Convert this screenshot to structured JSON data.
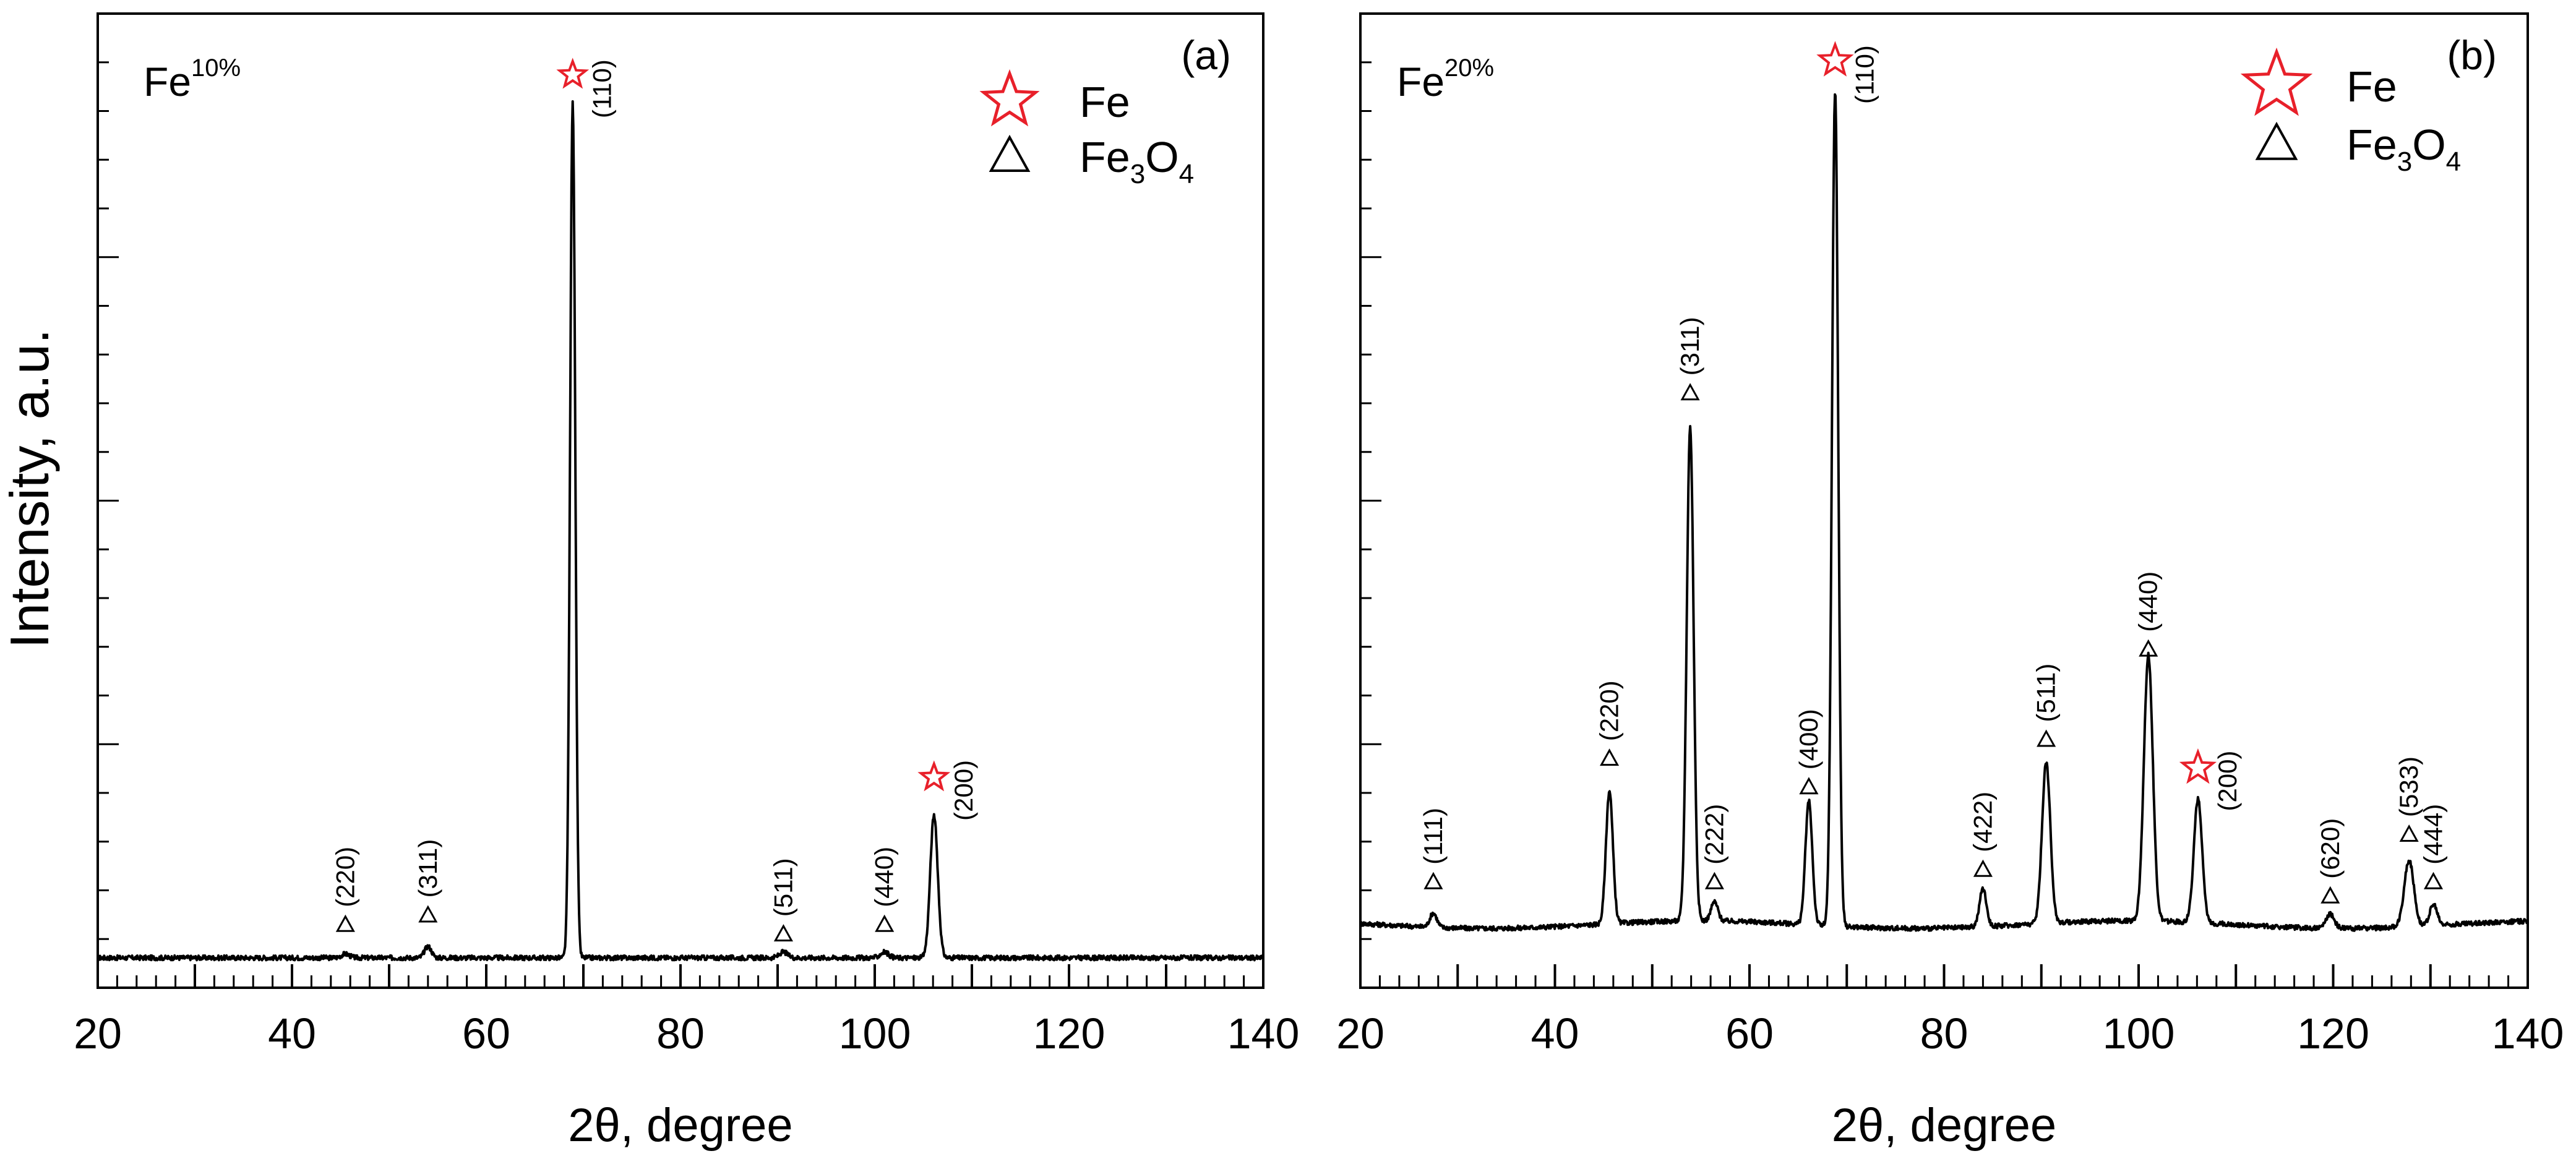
{
  "y_axis_title": "Intensity, a.u.",
  "legend": {
    "fe_label": "Fe",
    "fe3o4_base": "Fe",
    "fe3o4_sub1": "3",
    "fe3o4_mid": "O",
    "fe3o4_sub2": "4"
  },
  "colors": {
    "fe_marker": "#e8202a",
    "line": "#000000",
    "fe3o4_marker": "#000000"
  },
  "chart_data": [
    {
      "type": "line",
      "panel": "(a)",
      "sample_base": "Fe",
      "sample_sup": "10%",
      "xlabel": "2θ, degree",
      "ylabel": "Intensity, a.u.",
      "xlim": [
        20,
        140
      ],
      "ylim": [
        0,
        1
      ],
      "xticks": [
        20,
        40,
        60,
        80,
        100,
        120,
        140
      ],
      "baseline": 0.025,
      "peaks": [
        {
          "x": 45.5,
          "height": 0.004,
          "width": 0.6,
          "phase": "Fe3O4",
          "hkl": "(220)",
          "orient": "vertical",
          "marker_y": 0.06
        },
        {
          "x": 54.0,
          "height": 0.012,
          "width": 0.5,
          "phase": "Fe3O4",
          "hkl": "(311)",
          "orient": "vertical",
          "marker_y": 0.07
        },
        {
          "x": 68.9,
          "height": 0.9,
          "width": 0.38,
          "phase": "Fe",
          "hkl": "(110)",
          "orient": "side",
          "marker_y": 0.955
        },
        {
          "x": 90.6,
          "height": 0.006,
          "width": 0.6,
          "phase": "Fe3O4",
          "hkl": "(511)",
          "orient": "vertical",
          "marker_y": 0.05
        },
        {
          "x": 101.0,
          "height": 0.006,
          "width": 0.6,
          "phase": "Fe3O4",
          "hkl": "(440)",
          "orient": "vertical",
          "marker_y": 0.06
        },
        {
          "x": 106.1,
          "height": 0.15,
          "width": 0.55,
          "phase": "Fe",
          "hkl": "(200)",
          "orient": "side",
          "marker_y": 0.215
        }
      ]
    },
    {
      "type": "line",
      "panel": "(b)",
      "sample_base": "Fe",
      "sample_sup": "20%",
      "xlabel": "2θ, degree",
      "ylabel": "Intensity, a.u.",
      "xlim": [
        20,
        140
      ],
      "ylim": [
        0,
        1
      ],
      "xticks": [
        20,
        40,
        60,
        80,
        100,
        120,
        140
      ],
      "baseline": 0.06,
      "peaks": [
        {
          "x": 27.5,
          "height": 0.015,
          "width": 0.5,
          "phase": "Fe3O4",
          "hkl": "(111)",
          "orient": "vertical",
          "marker_y": 0.105
        },
        {
          "x": 45.6,
          "height": 0.14,
          "width": 0.5,
          "phase": "Fe3O4",
          "hkl": "(220)",
          "orient": "vertical",
          "marker_y": 0.235
        },
        {
          "x": 53.9,
          "height": 0.52,
          "width": 0.5,
          "phase": "Fe3O4",
          "hkl": "(311)",
          "orient": "vertical",
          "marker_y": 0.62
        },
        {
          "x": 56.4,
          "height": 0.02,
          "width": 0.5,
          "phase": "Fe3O4",
          "hkl": "(222)",
          "orient": "vertical",
          "marker_y": 0.105
        },
        {
          "x": 66.1,
          "height": 0.13,
          "width": 0.5,
          "phase": "Fe3O4",
          "hkl": "(400)",
          "orient": "vertical",
          "marker_y": 0.205
        },
        {
          "x": 68.8,
          "height": 0.88,
          "width": 0.45,
          "phase": "Fe",
          "hkl": "(110)",
          "orient": "side",
          "marker_y": 0.97
        },
        {
          "x": 84.0,
          "height": 0.04,
          "width": 0.5,
          "phase": "Fe3O4",
          "hkl": "(422)",
          "orient": "vertical",
          "marker_y": 0.118
        },
        {
          "x": 90.5,
          "height": 0.17,
          "width": 0.6,
          "phase": "Fe3O4",
          "hkl": "(511)",
          "orient": "vertical",
          "marker_y": 0.255
        },
        {
          "x": 101.0,
          "height": 0.28,
          "width": 0.65,
          "phase": "Fe3O4",
          "hkl": "(440)",
          "orient": "vertical",
          "marker_y": 0.35
        },
        {
          "x": 106.1,
          "height": 0.13,
          "width": 0.6,
          "phase": "Fe",
          "hkl": "(200)",
          "orient": "side",
          "marker_y": 0.225
        },
        {
          "x": 119.7,
          "height": 0.015,
          "width": 0.6,
          "phase": "Fe3O4",
          "hkl": "(620)",
          "orient": "vertical",
          "marker_y": 0.09
        },
        {
          "x": 127.8,
          "height": 0.07,
          "width": 0.7,
          "phase": "Fe3O4",
          "hkl": "(533)",
          "orient": "vertical",
          "marker_y": 0.155
        },
        {
          "x": 130.3,
          "height": 0.022,
          "width": 0.55,
          "phase": "Fe3O4",
          "hkl": "(444)",
          "orient": "vertical",
          "marker_y": 0.105
        }
      ]
    }
  ]
}
